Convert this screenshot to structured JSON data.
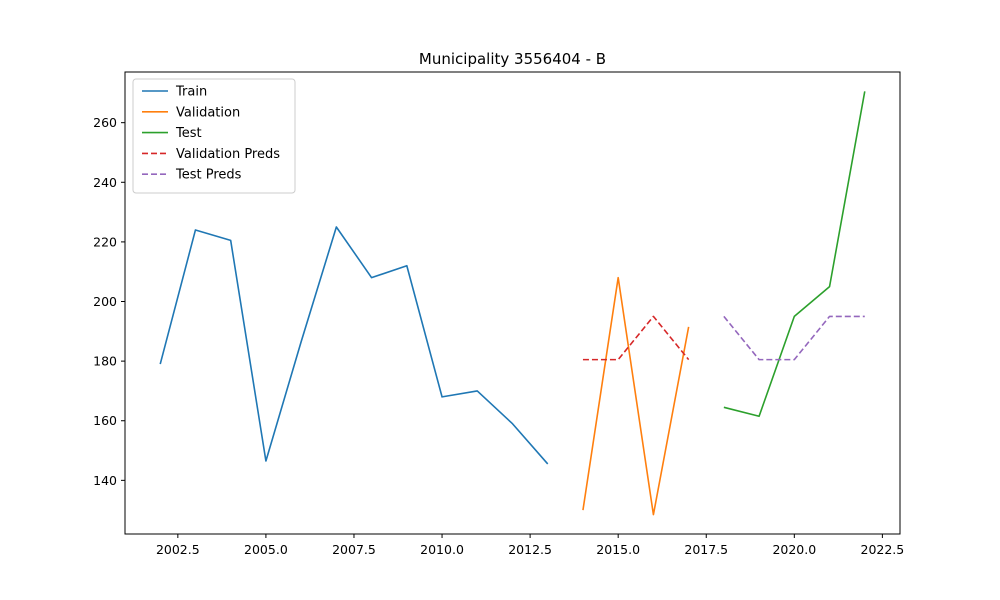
{
  "chart_data": {
    "type": "line",
    "title": "Municipality 3556404 - B",
    "xlabel": "",
    "ylabel": "",
    "xlim": [
      2001.0,
      2023.0
    ],
    "ylim": [
      122,
      277
    ],
    "x_ticks": [
      2002.5,
      2005.0,
      2007.5,
      2010.0,
      2012.5,
      2015.0,
      2017.5,
      2020.0,
      2022.5
    ],
    "x_tick_labels": [
      "2002.5",
      "2005.0",
      "2007.5",
      "2010.0",
      "2012.5",
      "2015.0",
      "2017.5",
      "2020.0",
      "2022.5"
    ],
    "y_ticks": [
      140,
      160,
      180,
      200,
      220,
      240,
      260
    ],
    "y_tick_labels": [
      "140",
      "160",
      "180",
      "200",
      "220",
      "240",
      "260"
    ],
    "grid": false,
    "legend_position": "top-left",
    "series": [
      {
        "name": "Train",
        "color": "#1f77b4",
        "dash": "solid",
        "x": [
          2002,
          2003,
          2004,
          2005,
          2006,
          2007,
          2008,
          2009,
          2010,
          2011,
          2012,
          2013
        ],
        "values": [
          179,
          224,
          220.5,
          146.5,
          186.5,
          225,
          208,
          212,
          168,
          170,
          159,
          145.5
        ]
      },
      {
        "name": "Validation",
        "color": "#ff7f0e",
        "dash": "solid",
        "x": [
          2014,
          2015,
          2016,
          2017
        ],
        "values": [
          130,
          208,
          128.5,
          191.5
        ]
      },
      {
        "name": "Test",
        "color": "#2ca02c",
        "dash": "solid",
        "x": [
          2018,
          2019,
          2020,
          2021,
          2022
        ],
        "values": [
          164.5,
          161.5,
          195,
          205,
          270.5
        ]
      },
      {
        "name": "Validation Preds",
        "color": "#d62728",
        "dash": "dashed",
        "x": [
          2014,
          2015,
          2016,
          2017
        ],
        "values": [
          180.5,
          180.5,
          195,
          180.5
        ]
      },
      {
        "name": "Test Preds",
        "color": "#9467bd",
        "dash": "dashed",
        "x": [
          2018,
          2019,
          2020,
          2021,
          2022
        ],
        "values": [
          195,
          180.5,
          180.5,
          195,
          195
        ]
      }
    ]
  }
}
